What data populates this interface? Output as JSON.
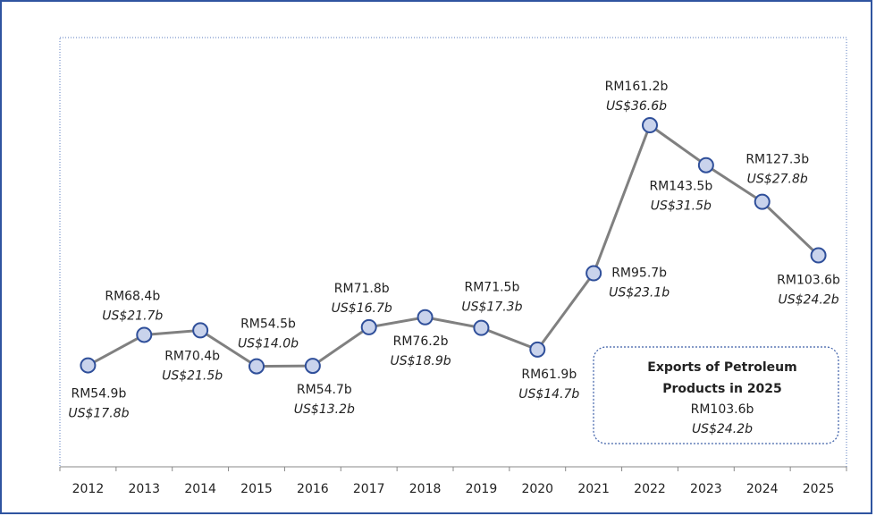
{
  "chart_data": {
    "type": "line",
    "categories": [
      "2012",
      "2013",
      "2014",
      "2015",
      "2016",
      "2017",
      "2018",
      "2019",
      "2020",
      "2021",
      "2022",
      "2023",
      "2024",
      "2025"
    ],
    "values": [
      54.9,
      68.4,
      70.4,
      54.5,
      54.7,
      71.8,
      76.2,
      71.5,
      61.9,
      95.7,
      161.2,
      143.5,
      127.3,
      103.6
    ],
    "value_labels": [
      "RM54.9b",
      "RM68.4b",
      "RM70.4b",
      "RM54.5b",
      "RM54.7b",
      "RM71.8b",
      "RM76.2b",
      "RM71.5b",
      "RM61.9b",
      "RM95.7b",
      "RM161.2b",
      "RM143.5b",
      "RM127.3b",
      "RM103.6b"
    ],
    "usd_labels": [
      "US$17.8b",
      "US$21.7b",
      "US$21.5b",
      "US$14.0b",
      "US$13.2b",
      "US$16.7b",
      "US$18.9b",
      "US$17.3b",
      "US$14.7b",
      "US$23.1b",
      "US$36.6b",
      "US$31.5b",
      "US$27.8b",
      "US$24.2b"
    ],
    "color": "#808080",
    "marker_fill": "#c9d3ec",
    "marker_stroke": "#2f4f9a",
    "ylim": [
      10,
      200
    ],
    "annotation": {
      "title": "Exports of  Petroleum Products in 2025",
      "title_line1": "Exports of  Petroleum",
      "title_line2": "Products in 2025",
      "rm": "RM103.6b",
      "usd": "US$24.2b"
    }
  }
}
